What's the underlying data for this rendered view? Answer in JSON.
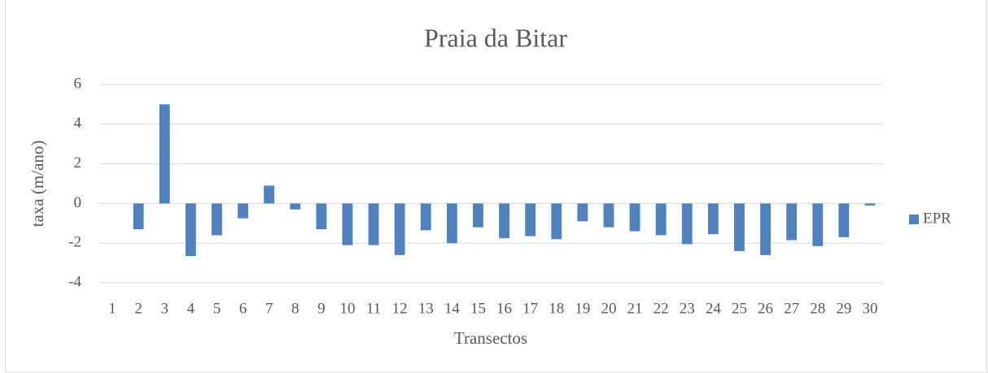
{
  "chart_data": {
    "type": "bar",
    "title": "Praia da Bitar",
    "x_label": "Transectos",
    "y_label": "taxa (m/ano)",
    "categories": [
      "1",
      "2",
      "3",
      "4",
      "5",
      "6",
      "7",
      "8",
      "9",
      "10",
      "11",
      "12",
      "13",
      "14",
      "15",
      "16",
      "17",
      "18",
      "19",
      "20",
      "21",
      "22",
      "23",
      "24",
      "25",
      "26",
      "27",
      "28",
      "29",
      "30"
    ],
    "series": [
      {
        "name": "EPR",
        "color": "#4f81bd",
        "values": [
          0,
          -1.3,
          5.0,
          -2.65,
          -1.6,
          -0.75,
          0.9,
          -0.3,
          -1.3,
          -2.1,
          -2.1,
          -2.6,
          -1.35,
          -2.0,
          -1.2,
          -1.75,
          -1.65,
          -1.8,
          -0.9,
          -1.2,
          -1.4,
          -1.6,
          -2.05,
          -1.55,
          -2.4,
          -2.6,
          -1.85,
          -2.15,
          -1.7,
          -0.1
        ]
      }
    ],
    "ylim": [
      -4,
      6
    ],
    "yticks": [
      -4,
      -2,
      0,
      2,
      4,
      6
    ],
    "grid": true,
    "legend": "right"
  }
}
